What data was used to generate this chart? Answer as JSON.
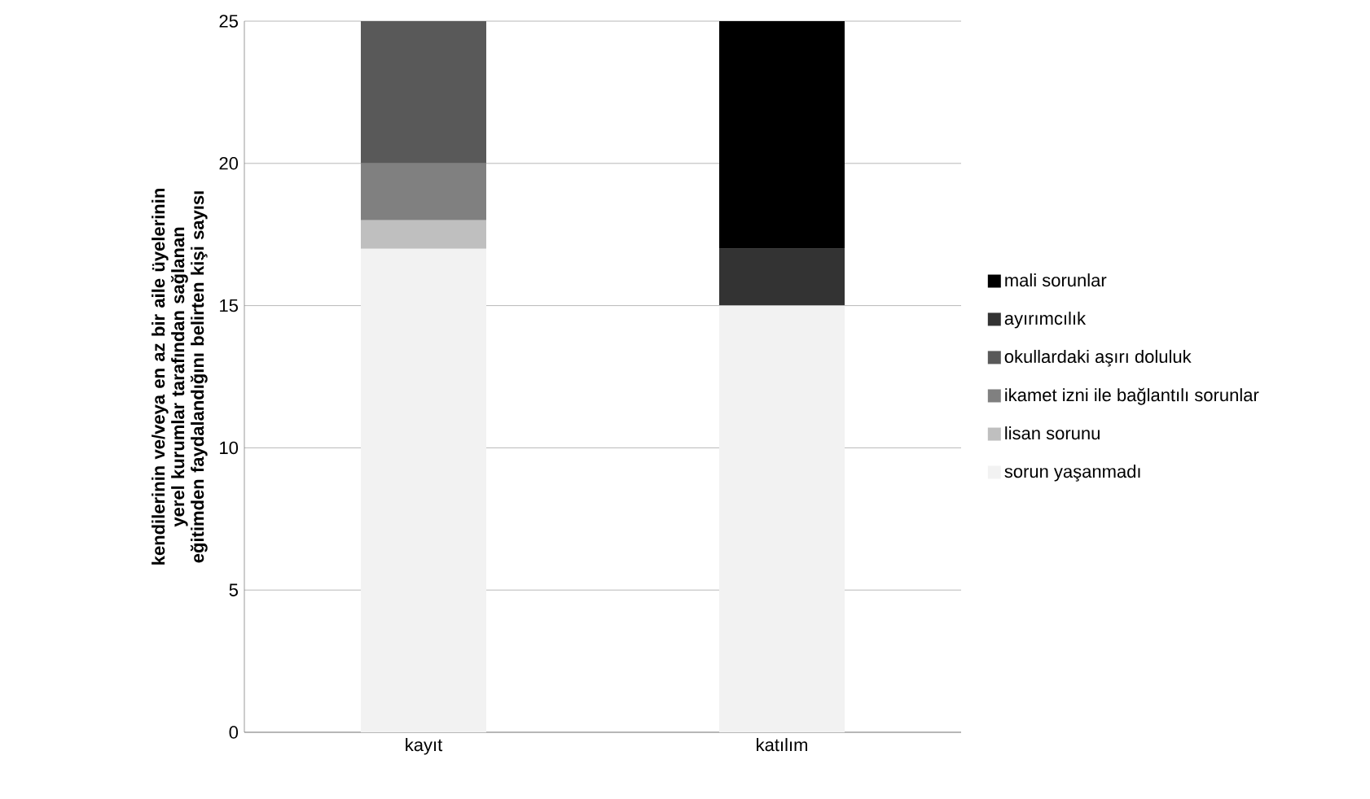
{
  "chart_data": {
    "type": "bar",
    "stacked": true,
    "ylabel": "kendilerinin ve/veya en az bir aile üyelerinin yerel kurumlar tarafından sağlanan eğitimden faydalandığını belirten kişi sayısı",
    "categories": [
      "kayıt",
      "katılım"
    ],
    "series": [
      {
        "name": "sorun yaşanmadı",
        "color": "#f2f2f2",
        "values": [
          17,
          15
        ]
      },
      {
        "name": "lisan sorunu",
        "color": "#bfbfbf",
        "values": [
          1,
          0
        ]
      },
      {
        "name": "ikamet izni ile bağlantılı sorunlar",
        "color": "#808080",
        "values": [
          2,
          0
        ]
      },
      {
        "name": "okullardaki aşırı doluluk",
        "color": "#595959",
        "values": [
          5,
          0
        ]
      },
      {
        "name": "ayırımcılık",
        "color": "#333333",
        "values": [
          0,
          2
        ]
      },
      {
        "name": "mali sorunlar",
        "color": "#000000",
        "values": [
          0,
          8
        ]
      }
    ],
    "ylim": [
      0,
      25
    ],
    "yticks": [
      0,
      5,
      10,
      15,
      20,
      25
    ],
    "grid": "y",
    "legend": "right"
  }
}
